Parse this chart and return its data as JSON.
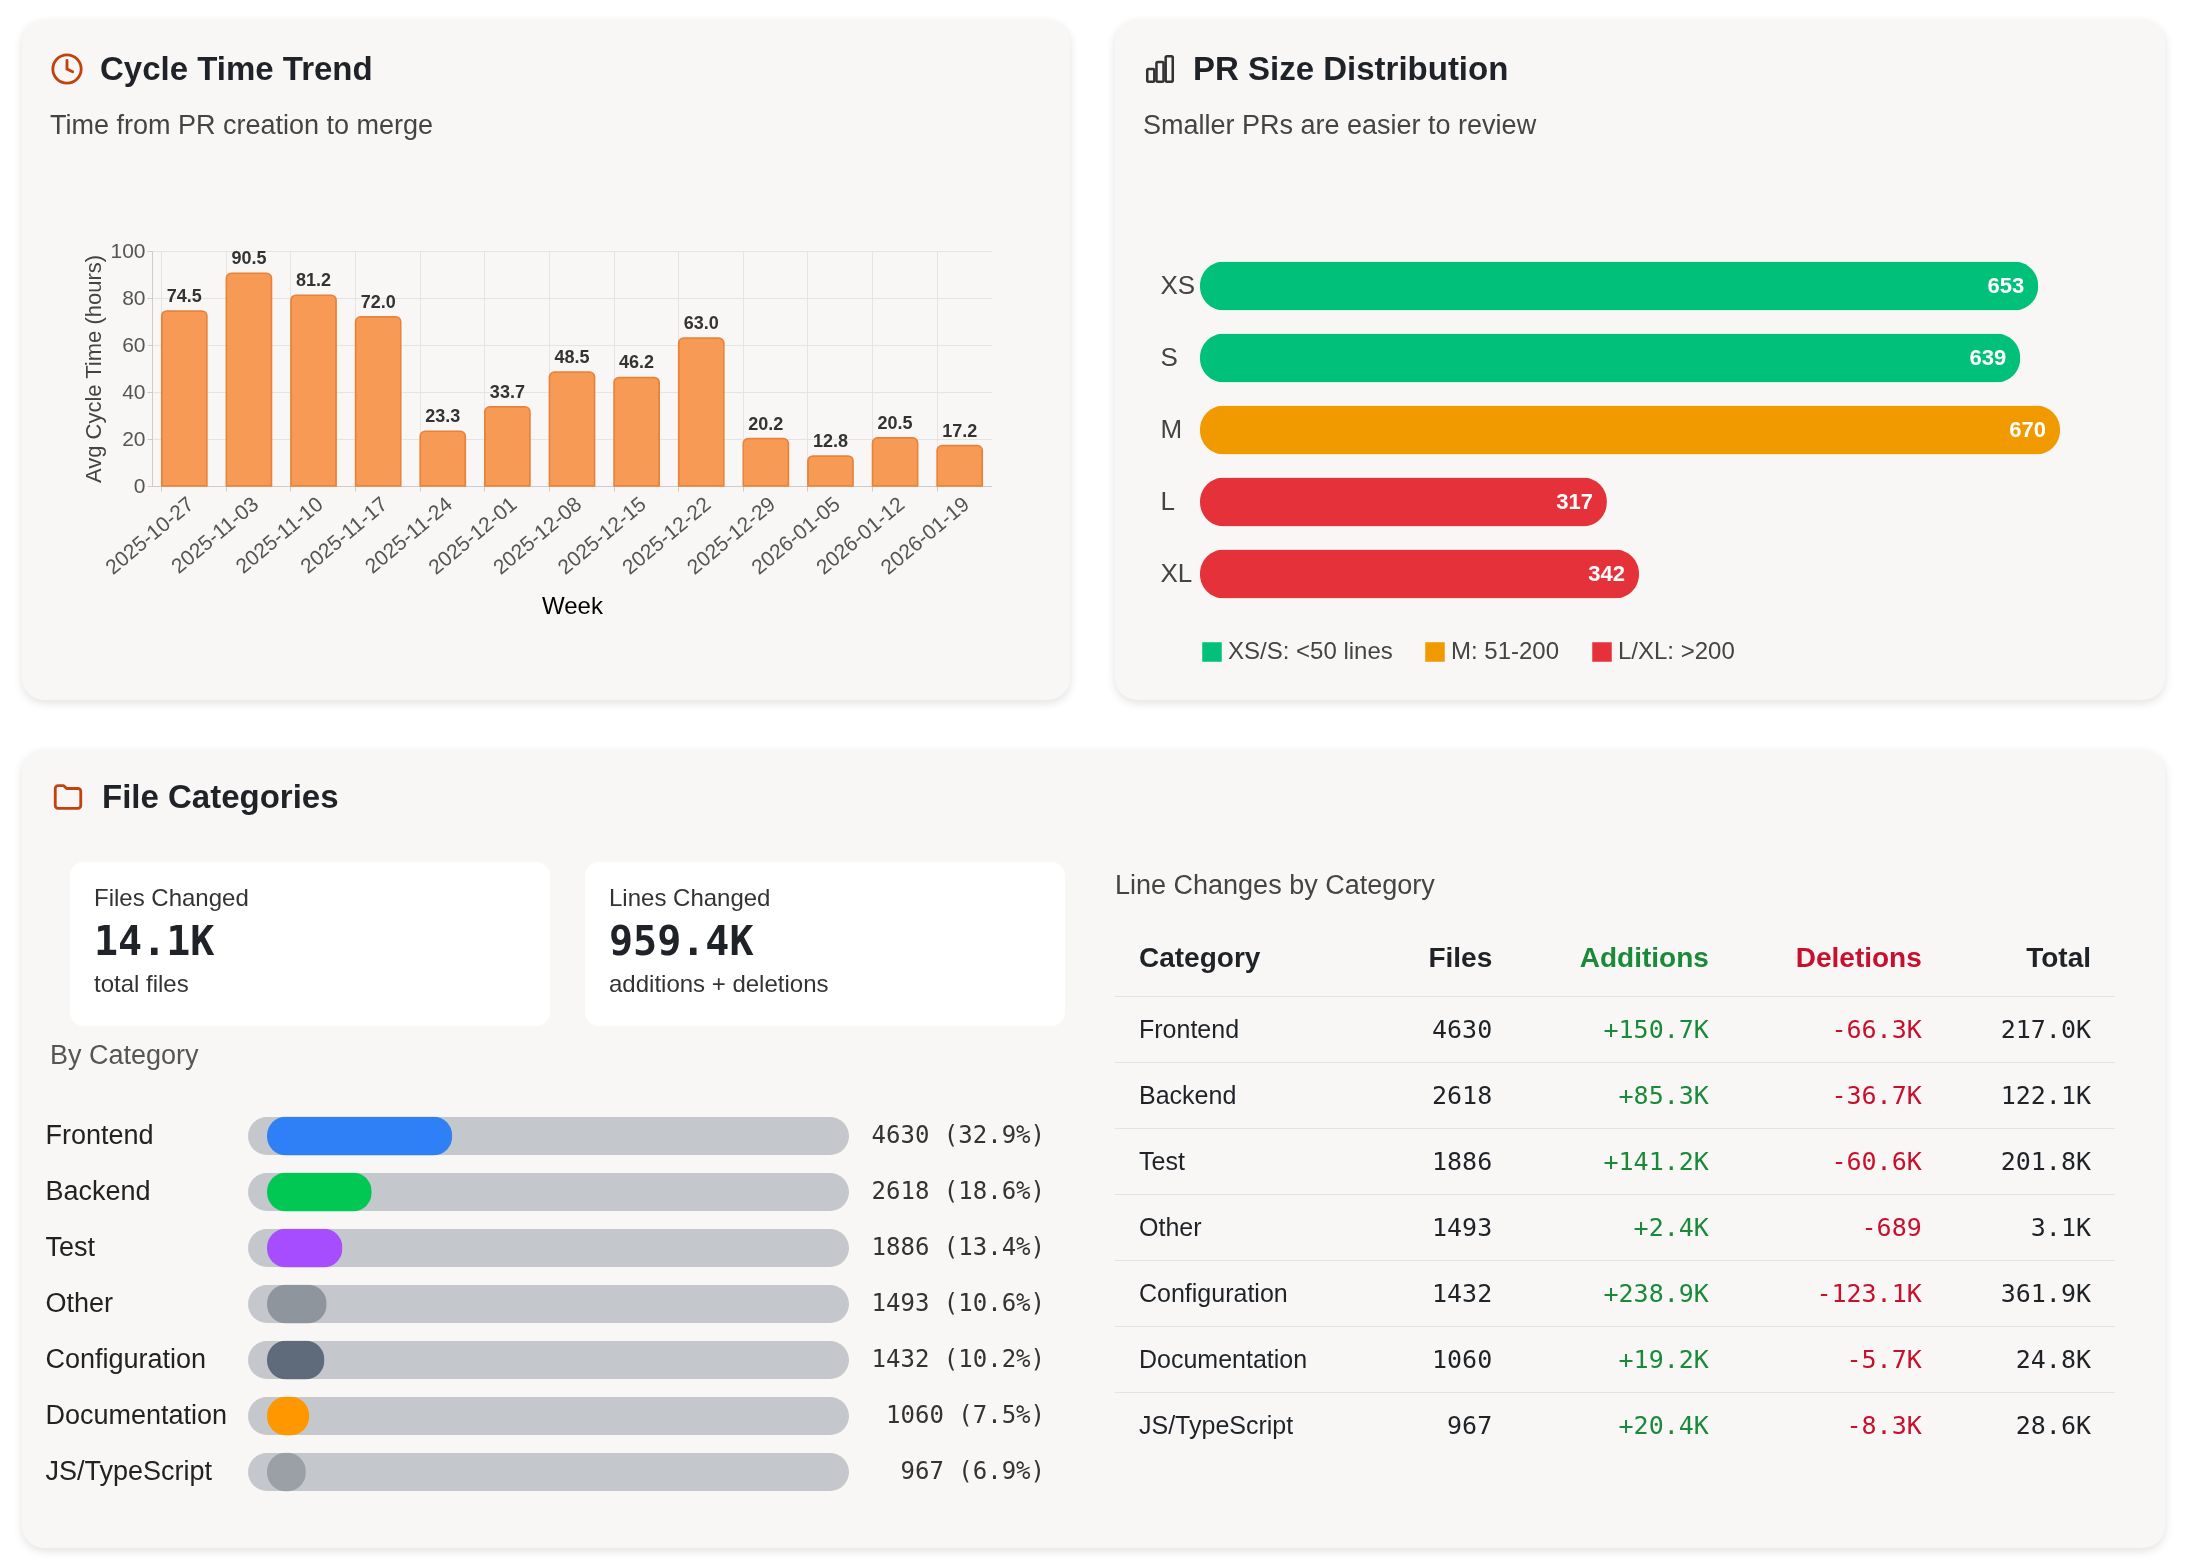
{
  "chart_data": [
    {
      "type": "bar",
      "title": "Cycle Time Trend",
      "subtitle": "Time from PR creation to merge",
      "xlabel": "Week",
      "ylabel": "Avg Cycle Time (hours)",
      "categories": [
        "2025-10-27",
        "2025-11-03",
        "2025-11-10",
        "2025-11-17",
        "2025-11-24",
        "2025-12-01",
        "2025-12-08",
        "2025-12-15",
        "2025-12-22",
        "2025-12-29",
        "2026-01-05",
        "2026-01-12",
        "2026-01-19"
      ],
      "values": [
        74.5,
        90.5,
        81.2,
        72.0,
        23.3,
        33.7,
        48.5,
        46.2,
        63.0,
        20.2,
        12.8,
        20.5,
        17.2
      ],
      "value_labels": [
        "74.5",
        "90.5",
        "81.2",
        "72.0",
        "23.3",
        "33.7",
        "48.5",
        "46.2",
        "63.0",
        "20.2",
        "12.8",
        "20.5",
        "17.2"
      ],
      "color": "#f79a55",
      "ylim": [
        0,
        100
      ],
      "yticks": [
        0,
        20,
        40,
        60,
        80,
        100
      ],
      "grid": true
    },
    {
      "type": "bar",
      "orientation": "horizontal",
      "title": "PR Size Distribution",
      "subtitle": "Smaller PRs are easier to review",
      "categories": [
        "XS",
        "S",
        "M",
        "L",
        "XL"
      ],
      "data_labels": true,
      "legend": "bottom",
      "tick_labels": "y",
      "series": [
        {
          "name": "XS/S: <50 lines",
          "color": "#00c07a",
          "values": [
            653,
            639,
            null,
            null,
            null
          ]
        },
        {
          "name": "M: 51-200",
          "color": "#f09a00",
          "values": [
            null,
            null,
            670,
            null,
            null
          ]
        },
        {
          "name": "L/XL: >200",
          "color": "#e5313a",
          "values": [
            null,
            null,
            null,
            317,
            342
          ]
        }
      ]
    },
    {
      "type": "other",
      "title": "File Categories",
      "annotations": [
        "Files Changed",
        "14.1K",
        "total files",
        "Lines Changed",
        "959.4K",
        "additions + deletions"
      ]
    },
    {
      "type": "bar",
      "orientation": "horizontal",
      "title": "By Category",
      "tick_labels": "y",
      "categories": [
        "Frontend",
        "Backend",
        "Test",
        "Other",
        "Configuration",
        "Documentation",
        "JS/TypeScript"
      ],
      "values": [
        32.9,
        18.6,
        13.4,
        10.6,
        10.2,
        7.5,
        6.9
      ],
      "value_labels": [
        "4630 (32.9%)",
        "2618 (18.6%)",
        "1886 (13.4%)",
        "1493 (10.6%)",
        "1432 (10.2%)",
        "1060 (7.5%)",
        "967 (6.9%)"
      ],
      "colors": [
        "#2f80f7",
        "#00c853",
        "#a64dff",
        "#8e959c",
        "#5f6b7a",
        "#ff9800",
        "#9aa0a6"
      ],
      "xlim": [
        0,
        100
      ]
    },
    {
      "type": "other",
      "title": "Line Changes by Category",
      "legend_title": "Category",
      "data_labels": true,
      "categories": [
        "Frontend",
        "Backend",
        "Test",
        "Other",
        "Configuration",
        "Documentation",
        "JS/TypeScript"
      ],
      "series": [
        {
          "name": "Files",
          "values": [
            4630,
            2618,
            1886,
            1493,
            1432,
            1060,
            967
          ]
        },
        {
          "name": "Additions",
          "color": "#1a8a3a",
          "values": [
            150700,
            85300,
            141200,
            2400,
            238900,
            19200,
            20400
          ],
          "value_labels": [
            "+150.7K",
            "+85.3K",
            "+141.2K",
            "+2.4K",
            "+238.9K",
            "+19.2K",
            "+20.4K"
          ]
        },
        {
          "name": "Deletions",
          "color": "#c8102e",
          "values": [
            -66300,
            -36700,
            -60600,
            -689,
            -123100,
            -5700,
            -8300
          ],
          "value_labels": [
            "-66.3K",
            "-36.7K",
            "-60.6K",
            "-689",
            "-123.1K",
            "-5.7K",
            "-8.3K"
          ]
        },
        {
          "name": "Total",
          "values": [
            217000,
            122100,
            201800,
            3100,
            361900,
            24800,
            28600
          ],
          "value_labels": [
            "217.0K",
            "122.1K",
            "201.8K",
            "3.1K",
            "361.9K",
            "24.8K",
            "28.6K"
          ]
        }
      ]
    }
  ]
}
